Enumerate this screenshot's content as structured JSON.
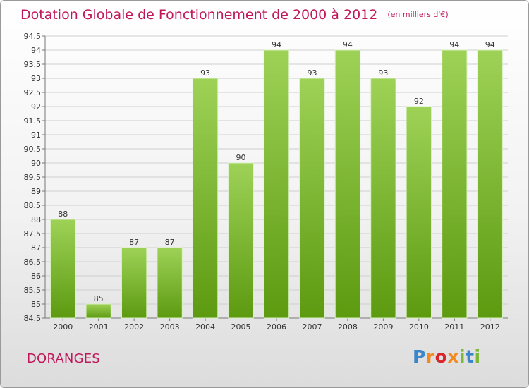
{
  "header": {
    "title": "Dotation Globale de Fonctionnement de 2000 à 2012",
    "unit": "(en milliers d'€)"
  },
  "footer": {
    "commune": "DORANGES",
    "logo": "Proxiti"
  },
  "colors": {
    "title": "#c0185a",
    "bar_light": "#9ed257",
    "bar_dark": "#5c9a10",
    "grid": "#cfcfcf"
  },
  "chart_data": {
    "type": "bar",
    "title": "Dotation Globale de Fonctionnement de 2000 à 2012",
    "xlabel": "",
    "ylabel": "",
    "categories": [
      "2000",
      "2001",
      "2002",
      "2003",
      "2004",
      "2005",
      "2006",
      "2007",
      "2008",
      "2009",
      "2010",
      "2011",
      "2012"
    ],
    "values": [
      88,
      85,
      87,
      87,
      93,
      90,
      94,
      93,
      94,
      93,
      92,
      94,
      94
    ],
    "ylim": [
      84.5,
      94.5
    ],
    "yticks": [
      "84.5",
      "85",
      "85.5",
      "86",
      "86.5",
      "87",
      "87.5",
      "88",
      "88.5",
      "89",
      "89.5",
      "90",
      "90.5",
      "91",
      "91.5",
      "92",
      "92.5",
      "93",
      "93.5",
      "94",
      "94.5"
    ],
    "grid": true,
    "data_labels": true
  }
}
